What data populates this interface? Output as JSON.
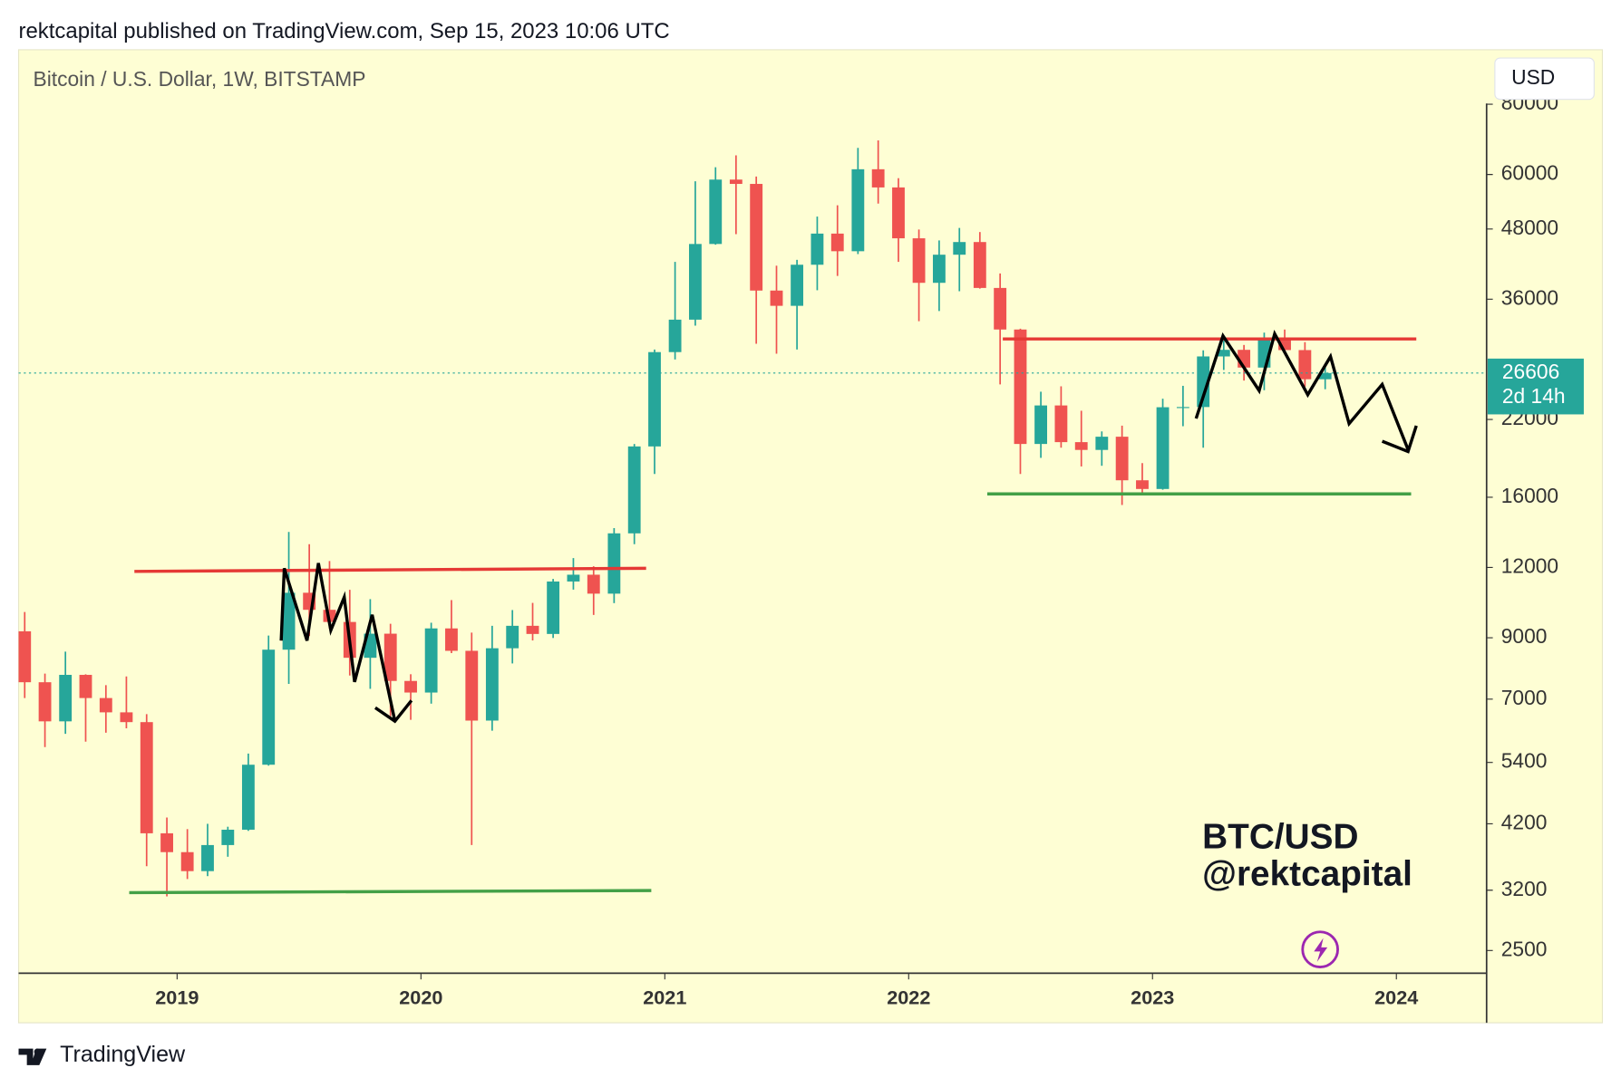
{
  "header": "rektcapital published on TradingView.com, Sep 15, 2023 10:06 UTC",
  "footer": "TradingView",
  "chart_data": {
    "type": "candlestick",
    "title": "Bitcoin / U.S. Dollar, 1W, BITSTAMP",
    "currency": "USD",
    "watermark": [
      "BTC/USD",
      "@rektcapital"
    ],
    "log_scale": true,
    "up_color": "#26a69a",
    "down_color": "#ef5350",
    "xlim": [
      2018.35,
      2024.37
    ],
    "xticks": [
      2019,
      2020,
      2021,
      2022,
      2023,
      2024
    ],
    "ylim": [
      2278,
      100000
    ],
    "yticks": [
      2500,
      3200,
      4200,
      5400,
      7000,
      9000,
      12000,
      16000,
      22000,
      36000,
      48000,
      60000,
      80000
    ],
    "last_price": 26606,
    "countdown": "2d 14h",
    "x": [
      2018.375,
      2018.458,
      2018.542,
      2018.625,
      2018.708,
      2018.792,
      2018.875,
      2018.958,
      2019.042,
      2019.125,
      2019.208,
      2019.292,
      2019.375,
      2019.458,
      2019.542,
      2019.625,
      2019.708,
      2019.792,
      2019.875,
      2019.958,
      2020.042,
      2020.125,
      2020.208,
      2020.292,
      2020.375,
      2020.458,
      2020.542,
      2020.625,
      2020.708,
      2020.792,
      2020.875,
      2020.958,
      2021.042,
      2021.125,
      2021.208,
      2021.292,
      2021.375,
      2021.458,
      2021.542,
      2021.625,
      2021.708,
      2021.792,
      2021.875,
      2021.958,
      2022.042,
      2022.125,
      2022.208,
      2022.292,
      2022.375,
      2022.458,
      2022.542,
      2022.625,
      2022.708,
      2022.792,
      2022.875,
      2022.958,
      2023.042,
      2023.125,
      2023.208,
      2023.292,
      2023.375,
      2023.458,
      2023.542,
      2023.625,
      2023.708
    ],
    "open": [
      9240,
      7500,
      6390,
      7730,
      7030,
      6630,
      6370,
      4040,
      3740,
      3460,
      3850,
      4100,
      5350,
      8570,
      10820,
      10090,
      9600,
      8290,
      9150,
      7540,
      7190,
      9350,
      8530,
      6410,
      8620,
      9450,
      9140,
      11330,
      11650,
      10780,
      13800,
      19700,
      28990,
      33110,
      45140,
      58760,
      57730,
      37300,
      35040,
      41460,
      47100,
      43820,
      61300,
      56900,
      46200,
      38500,
      43200,
      45500,
      37700,
      31800,
      19900,
      23300,
      20050,
      19420,
      20500,
      17150,
      16550,
      23130,
      23150,
      28480,
      29260,
      27210,
      30480,
      29230,
      25940
    ],
    "high": [
      10000,
      7770,
      8500,
      7750,
      7410,
      7680,
      6580,
      4310,
      4110,
      4200,
      4150,
      5600,
      9080,
      13880,
      13200,
      12320,
      10950,
      10540,
      9530,
      7750,
      9570,
      10500,
      9190,
      9450,
      10080,
      10380,
      11450,
      12470,
      12060,
      14100,
      19900,
      29300,
      41950,
      58350,
      61800,
      64900,
      59500,
      41300,
      42300,
      50500,
      52900,
      66900,
      69000,
      59100,
      47900,
      45800,
      48200,
      47400,
      40000,
      31900,
      24650,
      25200,
      22800,
      20950,
      21450,
      18400,
      23950,
      25250,
      29200,
      31000,
      29850,
      31400,
      31800,
      30200,
      27500
    ],
    "low": [
      7030,
      5750,
      6070,
      5880,
      6100,
      6210,
      3530,
      3120,
      3350,
      3390,
      3670,
      4080,
      5330,
      7450,
      9060,
      9350,
      7710,
      7300,
      6530,
      6430,
      6870,
      8450,
      3850,
      6150,
      8100,
      8900,
      8990,
      10960,
      9880,
      10370,
      13200,
      17600,
      28130,
      32300,
      45000,
      47000,
      30000,
      28800,
      29300,
      37350,
      39600,
      43300,
      53250,
      41950,
      32900,
      34300,
      37200,
      37600,
      25400,
      17600,
      18800,
      19600,
      18150,
      18200,
      15500,
      16300,
      16500,
      21400,
      19600,
      26950,
      25800,
      24800,
      28860,
      25170,
      24900
    ],
    "close": [
      7500,
      6390,
      7730,
      7030,
      6630,
      6370,
      4040,
      3740,
      3460,
      3850,
      4100,
      5350,
      8570,
      10820,
      10090,
      9600,
      8290,
      9150,
      7540,
      7190,
      9350,
      8530,
      6410,
      8620,
      9450,
      9140,
      11330,
      11650,
      10780,
      13800,
      19700,
      28990,
      33110,
      45140,
      58760,
      57730,
      37300,
      35040,
      41460,
      47100,
      43820,
      61300,
      56900,
      46200,
      38500,
      43200,
      45500,
      37700,
      31800,
      19900,
      23300,
      20050,
      19420,
      20500,
      17150,
      16550,
      23130,
      23150,
      28480,
      29260,
      27210,
      30480,
      29230,
      25940,
      26606
    ]
  }
}
